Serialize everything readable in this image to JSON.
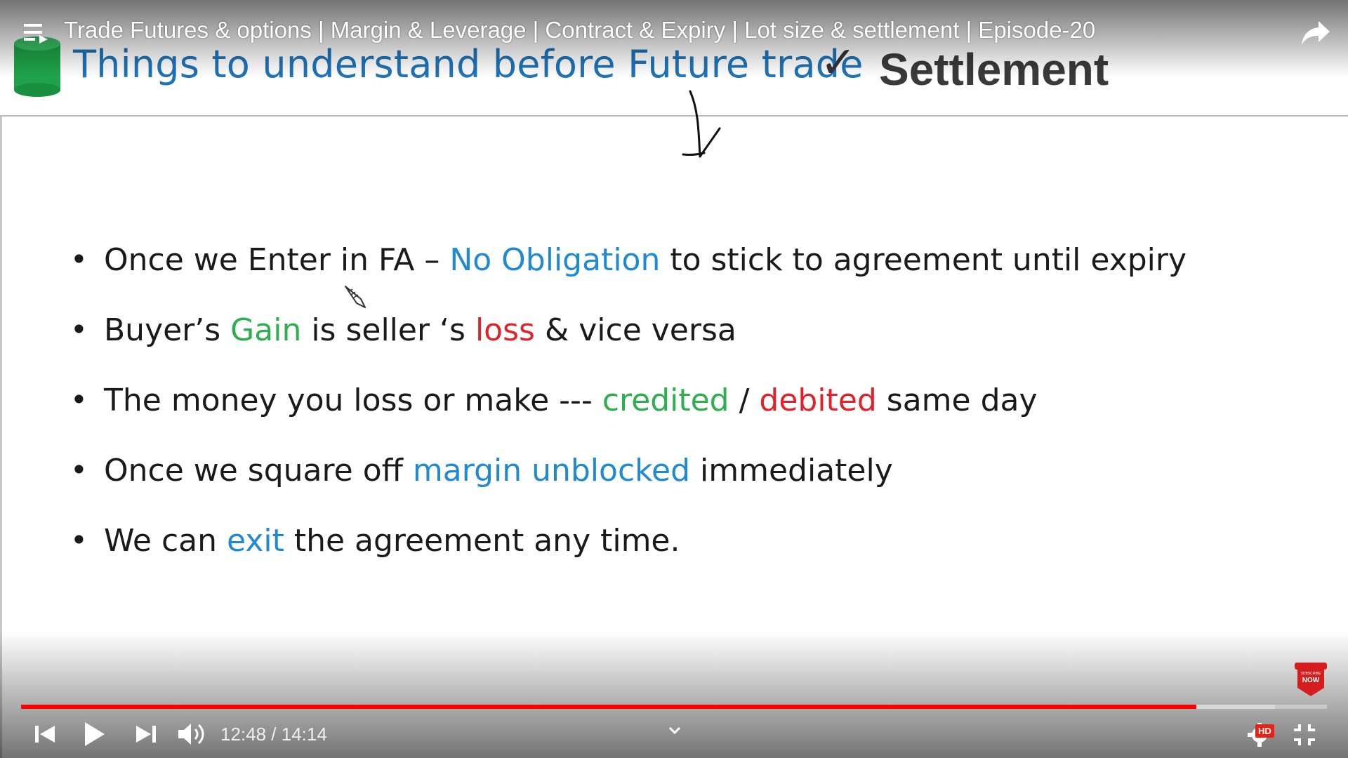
{
  "player": {
    "video_title": "Trade Futures & options | Margin & Leverage | Contract & Expiry | Lot size & settlement | Episode-20",
    "current_time": "12:48",
    "duration": "14:14",
    "time_separator": " / ",
    "hd_label": "HD",
    "subscribe_badge": "SUBSCRIBE NOW",
    "progress_played_fraction": 0.9,
    "progress_buffered_fraction": 0.96,
    "accent_color": "#ff0000",
    "icons": [
      "playlist-icon",
      "share-icon",
      "previous-icon",
      "play-icon",
      "next-icon",
      "volume-icon",
      "chevron-down-icon",
      "settings-icon",
      "exit-fullscreen-icon"
    ]
  },
  "slide": {
    "title": "Things to understand before Future trade",
    "check_mark": "✓",
    "subtitle": "Settlement",
    "bullets": [
      {
        "segments": [
          {
            "text": "Once we Enter in FA – ",
            "color": "default"
          },
          {
            "text": "No Obligation",
            "color": "blue"
          },
          {
            "text": " to stick to agreement until expiry",
            "color": "default"
          }
        ]
      },
      {
        "segments": [
          {
            "text": "Buyer’s ",
            "color": "default"
          },
          {
            "text": "Gain",
            "color": "green"
          },
          {
            "text": " is seller ‘s ",
            "color": "default"
          },
          {
            "text": "loss",
            "color": "red"
          },
          {
            "text": " & vice versa",
            "color": "default"
          }
        ]
      },
      {
        "segments": [
          {
            "text": "The money you loss or make --- ",
            "color": "default"
          },
          {
            "text": "credited",
            "color": "green"
          },
          {
            "text": " / ",
            "color": "default"
          },
          {
            "text": "debited",
            "color": "red"
          },
          {
            "text": " same day",
            "color": "default"
          }
        ]
      },
      {
        "segments": [
          {
            "text": "Once we square off ",
            "color": "default"
          },
          {
            "text": "margin unblocked",
            "color": "blue"
          },
          {
            "text": " immediately",
            "color": "default"
          }
        ]
      },
      {
        "segments": [
          {
            "text": "We can ",
            "color": "default"
          },
          {
            "text": "exit",
            "color": "blue"
          },
          {
            "text": " the agreement any time.",
            "color": "default"
          }
        ]
      }
    ],
    "colors": {
      "title": "#1f74b8",
      "blue": "#1f8ad1",
      "green": "#2eaf4f",
      "red": "#e0232a",
      "cylinder": "#1fa34a"
    }
  }
}
